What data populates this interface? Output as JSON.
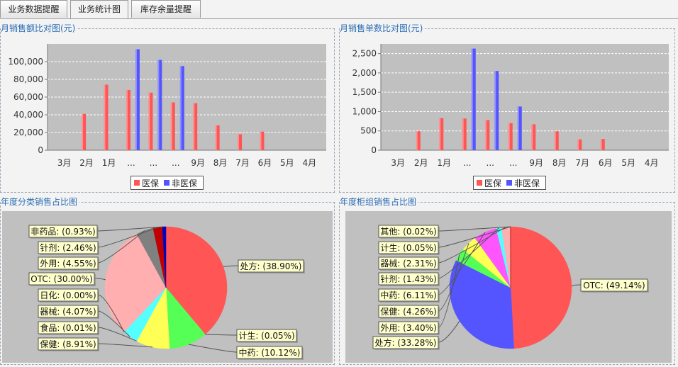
{
  "tabs": [
    {
      "label": "业务数据提醒"
    },
    {
      "label": "业务统计图"
    },
    {
      "label": "库存余量提醒"
    }
  ],
  "colors": {
    "series_a": "#ff5555",
    "series_b": "#5555ff",
    "plot_bg": "#c0c0c0",
    "title": "#2a6db3"
  },
  "panels": {
    "amount": {
      "title": "月销售额比对图(元)"
    },
    "count": {
      "title": "月销售单数比对图(元)"
    },
    "category": {
      "title": "年度分类销售占比图"
    },
    "counter": {
      "title": "年度柜组销售占比图"
    }
  },
  "chart_data": [
    {
      "type": "bar",
      "title": "月销售额比对图(元)",
      "categories": [
        "3月",
        "2月",
        "1月",
        "...",
        "...",
        "...",
        "9月",
        "8月",
        "7月",
        "6月",
        "5月",
        "4月"
      ],
      "series": [
        {
          "name": "医保",
          "color": "#ff5555",
          "values": [
            0,
            41000,
            74000,
            68000,
            65000,
            54000,
            53000,
            28000,
            18000,
            21000,
            0,
            0
          ]
        },
        {
          "name": "非医保",
          "color": "#5555ff",
          "values": [
            0,
            0,
            0,
            114000,
            102000,
            95000,
            0,
            0,
            0,
            0,
            0,
            0
          ]
        }
      ],
      "ylim": [
        0,
        120000
      ],
      "yticks": [
        "0",
        "20,000",
        "40,000",
        "60,000",
        "80,000",
        "100,000"
      ],
      "ytick_values": [
        0,
        20000,
        40000,
        60000,
        80000,
        100000
      ],
      "grid": true,
      "legend": "bottom"
    },
    {
      "type": "bar",
      "title": "月销售单数比对图(元)",
      "categories": [
        "3月",
        "2月",
        "1月",
        "...",
        "...",
        "...",
        "9月",
        "8月",
        "7月",
        "6月",
        "5月",
        "4月"
      ],
      "series": [
        {
          "name": "医保",
          "color": "#ff5555",
          "values": [
            0,
            490,
            830,
            820,
            780,
            700,
            670,
            490,
            280,
            290,
            0,
            0
          ]
        },
        {
          "name": "非医保",
          "color": "#5555ff",
          "values": [
            0,
            0,
            0,
            2630,
            2050,
            1130,
            0,
            0,
            0,
            0,
            0,
            0
          ]
        }
      ],
      "ylim": [
        0,
        2750
      ],
      "yticks": [
        "0",
        "500",
        "1,000",
        "1,500",
        "2,000",
        "2,500"
      ],
      "ytick_values": [
        0,
        500,
        1000,
        1500,
        2000,
        2500
      ],
      "grid": true,
      "legend": "bottom"
    },
    {
      "type": "pie",
      "title": "年度分类销售占比图",
      "slices": [
        {
          "label": "处方: (38.90%)",
          "value": 38.9,
          "color": "#ff5555"
        },
        {
          "label": "计生: (0.05%)",
          "value": 0.05,
          "color": "#55ff55"
        },
        {
          "label": "中药: (10.12%)",
          "value": 10.12,
          "color": "#55ff55"
        },
        {
          "label": "保健: (8.91%)",
          "value": 8.91,
          "color": "#ffff55"
        },
        {
          "label": "食品: (0.01%)",
          "value": 0.01,
          "color": "#55ffff"
        },
        {
          "label": "器械: (4.07%)",
          "value": 4.07,
          "color": "#55ffff"
        },
        {
          "label": "日化: (0.00%)",
          "value": 0.0,
          "color": "#ffafaf"
        },
        {
          "label": "OTC: (30.00%)",
          "value": 30.0,
          "color": "#ffafaf"
        },
        {
          "label": "外用: (4.55%)",
          "value": 4.55,
          "color": "#808080"
        },
        {
          "label": "针剂: (2.46%)",
          "value": 2.46,
          "color": "#c00000"
        },
        {
          "label": "非药品: (0.93%)",
          "value": 0.93,
          "color": "#0000c0"
        }
      ]
    },
    {
      "type": "pie",
      "title": "年度柜组销售占比图",
      "slices": [
        {
          "label": "OTC: (49.14%)",
          "value": 49.14,
          "color": "#ff5555"
        },
        {
          "label": "处方: (33.28%)",
          "value": 33.28,
          "color": "#5555ff"
        },
        {
          "label": "外用: (3.40%)",
          "value": 3.4,
          "color": "#55ff55"
        },
        {
          "label": "保健: (4.26%)",
          "value": 4.26,
          "color": "#ffff55"
        },
        {
          "label": "中药: (6.11%)",
          "value": 6.11,
          "color": "#ff55ff"
        },
        {
          "label": "针剂: (1.43%)",
          "value": 1.43,
          "color": "#55ffff"
        },
        {
          "label": "器械: (2.31%)",
          "value": 2.31,
          "color": "#ffafaf"
        },
        {
          "label": "计生: (0.05%)",
          "value": 0.05,
          "color": "#808080"
        },
        {
          "label": "其他: (0.02%)",
          "value": 0.02,
          "color": "#c00000"
        }
      ]
    }
  ]
}
